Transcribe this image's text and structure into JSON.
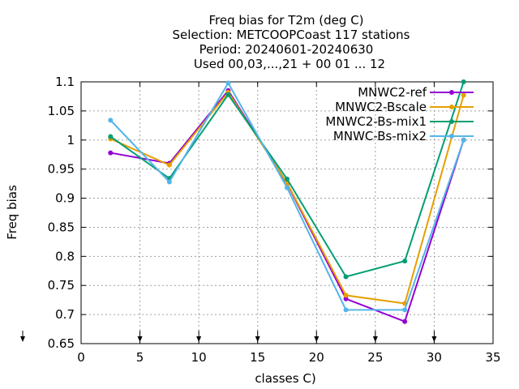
{
  "chart_data": {
    "type": "line",
    "title_lines": [
      "Freq bias  for T2m (deg C)",
      "Selection: METCOOPCoast    117 stations",
      "Period: 20240601-20240630",
      "Used 00,03,...,21 + 00 01 ... 12"
    ],
    "xlabel": "classes C)",
    "ylabel": "Freq bias",
    "xlim": [
      0,
      35
    ],
    "ylim": [
      0.65,
      1.1
    ],
    "xticks": [
      0,
      5,
      10,
      15,
      20,
      25,
      30,
      35
    ],
    "yticks": [
      0.65,
      0.7,
      0.75,
      0.8,
      0.85,
      0.9,
      0.95,
      1,
      1.05,
      1.1
    ],
    "grid": true,
    "legend_position": "top-right",
    "x": [
      2.5,
      7.5,
      12.5,
      17.5,
      22.5,
      27.5,
      32.5
    ],
    "series": [
      {
        "name": "MNWC2-ref",
        "color": "#9400d3",
        "values": [
          0.978,
          0.96,
          1.085,
          0.925,
          0.727,
          0.688,
          1.0
        ]
      },
      {
        "name": "MNWC2-Bscale",
        "color": "#e69f00",
        "values": [
          1.002,
          0.957,
          1.082,
          0.926,
          0.733,
          0.719,
          1.077
        ]
      },
      {
        "name": "MNWC2-Bs-mix1",
        "color": "#009e73",
        "values": [
          1.006,
          0.934,
          1.078,
          0.933,
          0.765,
          0.792,
          1.1
        ]
      },
      {
        "name": "MNWC-Bs-mix2",
        "color": "#56b4e9",
        "values": [
          1.034,
          0.928,
          1.098,
          0.918,
          0.708,
          0.708,
          1.0
        ]
      }
    ],
    "bottom_arrows_x": [
      0,
      5,
      10,
      15,
      20,
      25,
      30,
      35
    ]
  }
}
